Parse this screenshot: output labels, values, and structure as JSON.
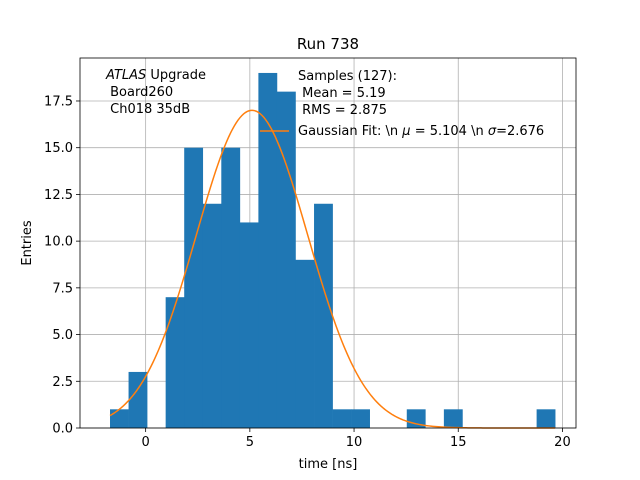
{
  "chart_data": {
    "type": "histogram",
    "title": "Run 738",
    "xlabel": "time [ns]",
    "ylabel": "Entries",
    "xlim": [
      -3.15,
      20.65
    ],
    "ylim": [
      0,
      19.8
    ],
    "xticks": [
      0,
      5,
      10,
      15,
      20
    ],
    "xtick_labels": [
      "0",
      "5",
      "10",
      "15",
      "20"
    ],
    "yticks": [
      0.0,
      2.5,
      5.0,
      7.5,
      10.0,
      12.5,
      15.0,
      17.5
    ],
    "ytick_labels": [
      "0.0",
      "2.5",
      "5.0",
      "7.5",
      "10.0",
      "12.5",
      "15.0",
      "17.5"
    ],
    "grid": true,
    "bar_color": "#1f77b4",
    "bins": [
      {
        "x0": -1.71,
        "x1": -0.82,
        "count": 1
      },
      {
        "x0": -0.82,
        "x1": 0.07,
        "count": 3
      },
      {
        "x0": 0.07,
        "x1": 0.96,
        "count": 0
      },
      {
        "x0": 0.96,
        "x1": 1.85,
        "count": 7
      },
      {
        "x0": 1.85,
        "x1": 2.74,
        "count": 15
      },
      {
        "x0": 2.74,
        "x1": 3.63,
        "count": 12
      },
      {
        "x0": 3.63,
        "x1": 4.52,
        "count": 15
      },
      {
        "x0": 4.52,
        "x1": 5.41,
        "count": 11
      },
      {
        "x0": 5.41,
        "x1": 6.3,
        "count": 19
      },
      {
        "x0": 6.3,
        "x1": 7.19,
        "count": 18
      },
      {
        "x0": 7.19,
        "x1": 8.08,
        "count": 9
      },
      {
        "x0": 8.08,
        "x1": 8.97,
        "count": 12
      },
      {
        "x0": 8.97,
        "x1": 9.86,
        "count": 1
      },
      {
        "x0": 9.86,
        "x1": 10.75,
        "count": 1
      },
      {
        "x0": 10.75,
        "x1": 11.64,
        "count": 0
      },
      {
        "x0": 11.64,
        "x1": 12.53,
        "count": 0
      },
      {
        "x0": 12.53,
        "x1": 13.42,
        "count": 1
      },
      {
        "x0": 13.42,
        "x1": 14.31,
        "count": 0
      },
      {
        "x0": 14.31,
        "x1": 15.2,
        "count": 1
      },
      {
        "x0": 15.2,
        "x1": 16.09,
        "count": 0
      },
      {
        "x0": 16.09,
        "x1": 16.98,
        "count": 0
      },
      {
        "x0": 16.98,
        "x1": 17.87,
        "count": 0
      },
      {
        "x0": 17.87,
        "x1": 18.76,
        "count": 0
      },
      {
        "x0": 18.76,
        "x1": 19.65,
        "count": 1
      }
    ],
    "fit": {
      "type": "gaussian",
      "color": "#ff7f0e",
      "amplitude": 17.0,
      "mu": 5.104,
      "sigma": 2.676,
      "x_range": [
        -1.71,
        19.65
      ],
      "label": "Gaussian Fit: \\n $\\mu$ = 5.104 \\n $\\sigma$=2.676"
    },
    "annotations": {
      "atlas_italic": "ATLAS",
      "atlas_rest": " Upgrade",
      "board": " Board260",
      "channel": " Ch018 35dB",
      "samples_line1": "Samples (127):",
      "samples_line2": " Mean = 5.19",
      "samples_line3": " RMS = 2.875",
      "legend_prefix": "Gaussian Fit: \\n ",
      "mu_symbol": "μ",
      "legend_mid": " = 5.104 \\n ",
      "sigma_symbol": "σ",
      "legend_suffix": "=2.676"
    }
  }
}
